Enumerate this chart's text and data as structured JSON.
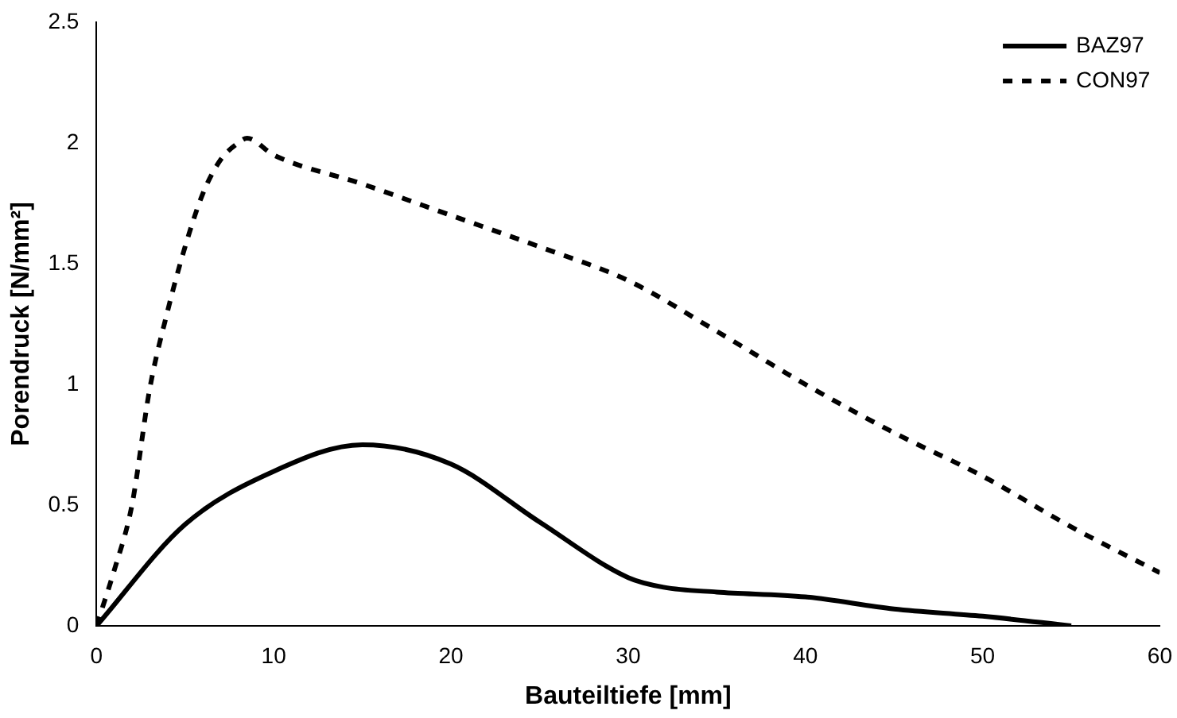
{
  "chart_data": {
    "type": "line",
    "xlabel": "Bauteiltiefe [mm]",
    "ylabel": "Porendruck [N/mm²]",
    "xlim": [
      0,
      60
    ],
    "xticks": [
      0,
      10,
      20,
      30,
      40,
      50,
      60
    ],
    "ylim": [
      0,
      2.5
    ],
    "yticks": [
      0,
      0.5,
      1,
      1.5,
      2,
      2.5
    ],
    "grid": false,
    "legend": "top right",
    "marker": "none",
    "series": [
      {
        "name": "BAZ97",
        "color": "#000000",
        "line_style": "solid",
        "x": [
          0,
          5,
          10,
          15,
          20,
          25,
          30,
          32,
          35,
          40,
          45,
          50,
          55
        ],
        "values": [
          0,
          0.42,
          0.64,
          0.75,
          0.67,
          0.43,
          0.2,
          0.16,
          0.14,
          0.12,
          0.07,
          0.04,
          0
        ]
      },
      {
        "name": "CON97",
        "color": "#000000",
        "line_style": "dashed",
        "x": [
          0,
          1,
          2,
          3,
          4,
          5,
          6,
          7,
          8,
          8.5,
          10,
          15,
          20,
          25,
          30,
          35,
          40,
          45,
          50,
          55,
          60
        ],
        "values": [
          0,
          0.23,
          0.5,
          0.98,
          1.3,
          1.57,
          1.79,
          1.93,
          2,
          2.02,
          1.95,
          1.83,
          1.7,
          1.57,
          1.43,
          1.22,
          1,
          0.8,
          0.62,
          0.41,
          0.22
        ]
      }
    ]
  }
}
